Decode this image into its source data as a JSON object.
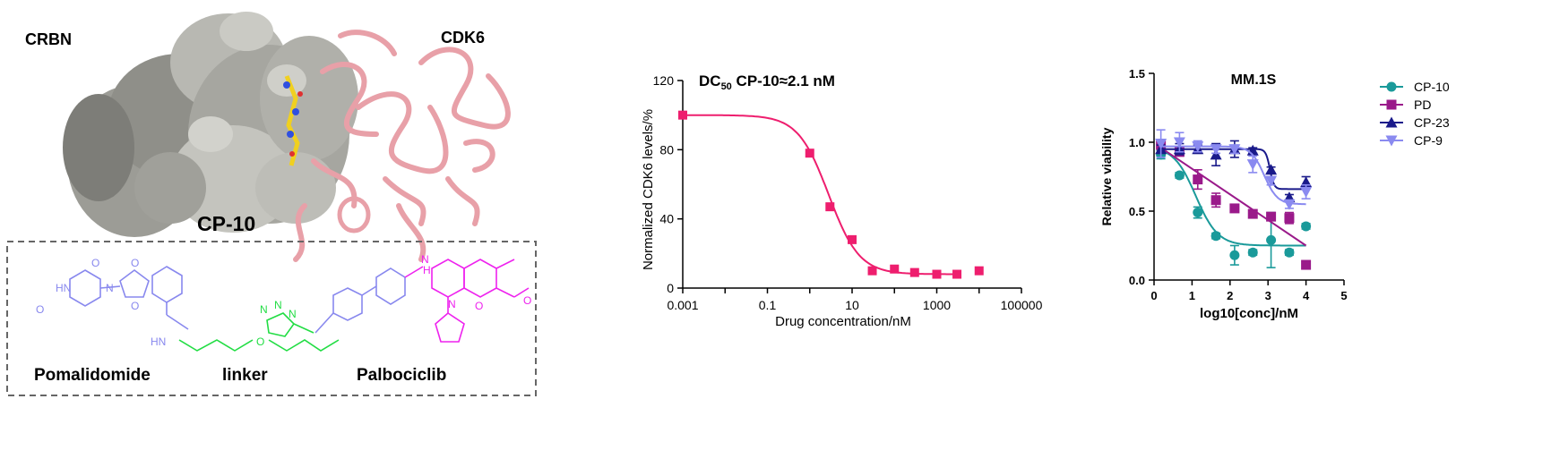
{
  "panel_a": {
    "label_crbn": "CRBN",
    "label_cdk6": "CDK6",
    "label_compound": "CP-10",
    "structure": {
      "groups": {
        "pomalidomide": "Pomalidomide",
        "linker": "linker",
        "palbociclib": "Palbociclib"
      },
      "atoms": {
        "hn": "HN",
        "nh": "NH",
        "h": "H",
        "o": "O",
        "n": "N"
      }
    },
    "colors": {
      "pomalidomide": "#8888ee",
      "linker": "#22dd44",
      "palbociclib": "#ee22ee",
      "surface": "#a9a9a3",
      "cdk6_ribbon": "#e8a0a8",
      "ligand": "#f0d020"
    }
  },
  "chart_data": [
    {
      "type": "line",
      "title": "DC",
      "title_sub": "50",
      "title_rest": " CP-10≈2.1 nM",
      "xlabel": "Drug concentration/nM",
      "ylabel": "Normalized CDK6 levels/%",
      "x_scale": "log",
      "xlim": [
        0.001,
        100000
      ],
      "ylim": [
        0,
        120
      ],
      "x_ticks": [
        0.001,
        0.01,
        0.1,
        1,
        10,
        100,
        1000,
        10000,
        100000
      ],
      "x_tick_labels": [
        "0.001",
        "",
        "0.1",
        "",
        "10",
        "",
        "1000",
        "",
        "100000"
      ],
      "y_ticks": [
        0,
        40,
        80,
        120
      ],
      "y_tick_labels": [
        "0",
        "40",
        "80",
        "120"
      ],
      "color": "#ee1e6e",
      "points": [
        {
          "x": 0.001,
          "y": 100
        },
        {
          "x": 1,
          "y": 78
        },
        {
          "x": 3,
          "y": 47
        },
        {
          "x": 10,
          "y": 28
        },
        {
          "x": 30,
          "y": 10
        },
        {
          "x": 100,
          "y": 11
        },
        {
          "x": 300,
          "y": 9
        },
        {
          "x": 1000,
          "y": 8
        },
        {
          "x": 3000,
          "y": 8
        },
        {
          "x": 10000,
          "y": 10
        }
      ],
      "fit": {
        "top": 100,
        "bottom": 8,
        "ec50": 2.8,
        "hill": 1.2
      }
    },
    {
      "type": "scatter",
      "title": "MM.1S",
      "xlabel": "log10[conc]/nM",
      "ylabel": "Relative viability",
      "xlim": [
        0,
        5
      ],
      "ylim": [
        0,
        1.5
      ],
      "x_ticks": [
        0,
        1,
        2,
        3,
        4,
        5
      ],
      "x_tick_labels": [
        "0",
        "1",
        "2",
        "3",
        "4",
        "5"
      ],
      "y_ticks": [
        0,
        0.5,
        1.0,
        1.5
      ],
      "y_tick_labels": [
        "0.0",
        "0.5",
        "1.0",
        "1.5"
      ],
      "legend_position": "top-right",
      "series": [
        {
          "name": "CP-10",
          "color": "#1a9a9a",
          "marker": "circle",
          "points": [
            {
              "x": 0.18,
              "y": 0.91,
              "err": 0.03
            },
            {
              "x": 0.67,
              "y": 0.76,
              "err": 0.02
            },
            {
              "x": 1.15,
              "y": 0.49,
              "err": 0.04
            },
            {
              "x": 1.63,
              "y": 0.32,
              "err": 0.02
            },
            {
              "x": 2.12,
              "y": 0.18,
              "err": 0.07
            },
            {
              "x": 2.6,
              "y": 0.2,
              "err": 0.02
            },
            {
              "x": 3.08,
              "y": 0.29,
              "err": 0.2
            },
            {
              "x": 3.56,
              "y": 0.2,
              "err": 0.02
            },
            {
              "x": 4.0,
              "y": 0.39,
              "err": 0.02
            }
          ],
          "fit": {
            "type": "sigmoid",
            "top": 0.97,
            "bottom": 0.25,
            "logec50": 1.1,
            "hill": 1.5
          }
        },
        {
          "name": "PD",
          "color": "#9a1a8a",
          "marker": "square",
          "points": [
            {
              "x": 0.18,
              "y": 0.98,
              "err": 0.03
            },
            {
              "x": 0.67,
              "y": 0.93,
              "err": 0.03
            },
            {
              "x": 1.15,
              "y": 0.73,
              "err": 0.07
            },
            {
              "x": 1.63,
              "y": 0.58,
              "err": 0.05
            },
            {
              "x": 2.12,
              "y": 0.52,
              "err": 0.02
            },
            {
              "x": 2.6,
              "y": 0.48,
              "err": 0.02
            },
            {
              "x": 3.08,
              "y": 0.46,
              "err": 0.02
            },
            {
              "x": 3.56,
              "y": 0.45,
              "err": 0.04
            },
            {
              "x": 4.0,
              "y": 0.11,
              "err": 0.03
            }
          ],
          "fit": {
            "type": "linear",
            "x0": 0.18,
            "y0": 0.96,
            "x1": 4.0,
            "y1": 0.25
          }
        },
        {
          "name": "CP-23",
          "color": "#1a1a8a",
          "marker": "triangle-up",
          "points": [
            {
              "x": 0.18,
              "y": 0.95,
              "err": 0.03
            },
            {
              "x": 0.67,
              "y": 0.95,
              "err": 0.04
            },
            {
              "x": 1.15,
              "y": 0.95,
              "err": 0.03
            },
            {
              "x": 1.63,
              "y": 0.91,
              "err": 0.08
            },
            {
              "x": 2.12,
              "y": 0.95,
              "err": 0.06
            },
            {
              "x": 2.6,
              "y": 0.94,
              "err": 0.02
            },
            {
              "x": 3.08,
              "y": 0.8,
              "err": 0.02
            },
            {
              "x": 3.56,
              "y": 0.6,
              "err": 0.02
            },
            {
              "x": 4.0,
              "y": 0.71,
              "err": 0.04
            }
          ],
          "fit": {
            "type": "sigmoid",
            "top": 0.95,
            "bottom": 0.66,
            "logec50": 3.05,
            "hill": 8
          }
        },
        {
          "name": "CP-9",
          "color": "#8a8af0",
          "marker": "triangle-down",
          "points": [
            {
              "x": 0.18,
              "y": 0.99,
              "err": 0.1
            },
            {
              "x": 0.67,
              "y": 1.0,
              "err": 0.07
            },
            {
              "x": 1.15,
              "y": 0.97,
              "err": 0.04
            },
            {
              "x": 1.63,
              "y": 0.95,
              "err": 0.03
            },
            {
              "x": 2.12,
              "y": 0.95,
              "err": 0.03
            },
            {
              "x": 2.6,
              "y": 0.84,
              "err": 0.06
            },
            {
              "x": 3.08,
              "y": 0.72,
              "err": 0.03
            },
            {
              "x": 3.56,
              "y": 0.55,
              "err": 0.03
            },
            {
              "x": 4.0,
              "y": 0.64,
              "err": 0.05
            }
          ],
          "fit": {
            "type": "sigmoid",
            "top": 0.97,
            "bottom": 0.55,
            "logec50": 2.9,
            "hill": 2.5
          }
        }
      ]
    }
  ]
}
